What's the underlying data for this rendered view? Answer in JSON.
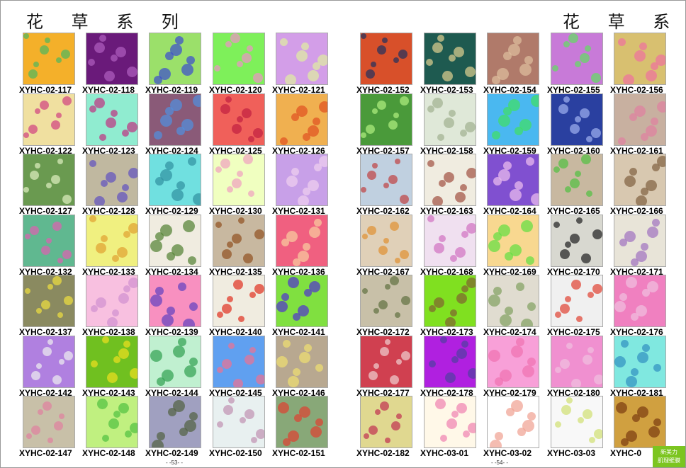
{
  "left": {
    "title": "花 草 系 列",
    "page_number": "- -53- -",
    "swatches": [
      {
        "code": "XYHC-02-117",
        "bg": "#f4b02a",
        "fg": "#4cb860"
      },
      {
        "code": "XYHC-02-118",
        "bg": "#6a1a7a",
        "fg": "#b060c0"
      },
      {
        "code": "XYHC-02-119",
        "bg": "#9be06a",
        "fg": "#3a4ad0"
      },
      {
        "code": "XYHC-02-120",
        "bg": "#7ef05a",
        "fg": "#f090c8"
      },
      {
        "code": "XYHC-02-121",
        "bg": "#d39ee8",
        "fg": "#e0f0a0"
      },
      {
        "code": "XYHC-02-122",
        "bg": "#f0e0a0",
        "fg": "#d04080"
      },
      {
        "code": "XYHC-02-123",
        "bg": "#90ecd0",
        "fg": "#c03080"
      },
      {
        "code": "XYHC-02-124",
        "bg": "#8a5a78",
        "fg": "#5090e0"
      },
      {
        "code": "XYHC-02-125",
        "bg": "#f0605a",
        "fg": "#c02040"
      },
      {
        "code": "XYHC-02-126",
        "bg": "#f0b050",
        "fg": "#e05020"
      },
      {
        "code": "XYHC-02-127",
        "bg": "#6a9a50",
        "fg": "#e0f0c0"
      },
      {
        "code": "XYHC-02-128",
        "bg": "#c0b8a0",
        "fg": "#6050c0"
      },
      {
        "code": "XYHC-02-129",
        "bg": "#70e0e0",
        "fg": "#3090a0"
      },
      {
        "code": "XYHC-02-130",
        "bg": "#f0ffc0",
        "fg": "#f0a0c0"
      },
      {
        "code": "XYHC-02-131",
        "bg": "#c8a0e8",
        "fg": "#f0d0f0"
      },
      {
        "code": "XYHC-02-132",
        "bg": "#60b890",
        "fg": "#e060b0"
      },
      {
        "code": "XYHC-02-133",
        "bg": "#f0f080",
        "fg": "#e0a030"
      },
      {
        "code": "XYHC-02-134",
        "bg": "#f0ece0",
        "fg": "#508030"
      },
      {
        "code": "XYHC-02-135",
        "bg": "#c8b8a0",
        "fg": "#905020"
      },
      {
        "code": "XYHC-02-136",
        "bg": "#f06080",
        "fg": "#f8d0a0"
      },
      {
        "code": "XYHC-02-137",
        "bg": "#8a8a60",
        "fg": "#f0e040"
      },
      {
        "code": "XYHC-02-138",
        "bg": "#f8c0e0",
        "fg": "#d090d0"
      },
      {
        "code": "XYHC-02-139",
        "bg": "#f890c0",
        "fg": "#6040c0"
      },
      {
        "code": "XYHC-02-140",
        "bg": "#f0ece0",
        "fg": "#e03020"
      },
      {
        "code": "XYHC-02-141",
        "bg": "#80e040",
        "fg": "#5030d0"
      },
      {
        "code": "XYHC-02-142",
        "bg": "#b080e0",
        "fg": "#f0f0f0"
      },
      {
        "code": "XYHC-02-143",
        "bg": "#70c020",
        "fg": "#f0e020"
      },
      {
        "code": "XYHC-02-144",
        "bg": "#c0f0d0",
        "fg": "#30a050"
      },
      {
        "code": "XYHC-02-145",
        "bg": "#60a0f0",
        "fg": "#f07090"
      },
      {
        "code": "XYHC-02-146",
        "bg": "#b8a890",
        "fg": "#f0e070"
      },
      {
        "code": "XYHC-02-147",
        "bg": "#c8c0a8",
        "fg": "#e080a0"
      },
      {
        "code": "XYHC-02-148",
        "bg": "#c0f080",
        "fg": "#50c040"
      },
      {
        "code": "XYHC-02-149",
        "bg": "#a0a0c0",
        "fg": "#506040"
      },
      {
        "code": "XYHC-02-150",
        "bg": "#e8f0f0",
        "fg": "#c090b0"
      },
      {
        "code": "XYHC-02-151",
        "bg": "#88a878",
        "fg": "#e04030"
      }
    ]
  },
  "right": {
    "title": "花 草 系 列",
    "page_number": "- -54- -",
    "swatches": [
      {
        "code": "XYHC-02-152",
        "bg": "#d8502a",
        "fg": "#203060"
      },
      {
        "code": "XYHC-02-153",
        "bg": "#1e5a50",
        "fg": "#e0d090"
      },
      {
        "code": "XYHC-02-154",
        "bg": "#b07a6a",
        "fg": "#e0c0a0"
      },
      {
        "code": "XYHC-02-155",
        "bg": "#c87ad8",
        "fg": "#60e060"
      },
      {
        "code": "XYHC-02-156",
        "bg": "#d8c070",
        "fg": "#f070a0"
      },
      {
        "code": "XYHC-02-157",
        "bg": "#4a9a3a",
        "fg": "#b0f080"
      },
      {
        "code": "XYHC-02-158",
        "bg": "#dfe8d8",
        "fg": "#a0b090"
      },
      {
        "code": "XYHC-02-159",
        "bg": "#4ab8f0",
        "fg": "#40e060"
      },
      {
        "code": "XYHC-02-160",
        "bg": "#2a40a0",
        "fg": "#a0b0f0"
      },
      {
        "code": "XYHC-02-161",
        "bg": "#c8b0a0",
        "fg": "#e080a0"
      },
      {
        "code": "XYHC-02-162",
        "bg": "#c0d0e0",
        "fg": "#c04040"
      },
      {
        "code": "XYHC-02-163",
        "bg": "#f0ece0",
        "fg": "#a05040"
      },
      {
        "code": "XYHC-02-164",
        "bg": "#8050d0",
        "fg": "#f0c0f0"
      },
      {
        "code": "XYHC-02-165",
        "bg": "#c8b8a0",
        "fg": "#50c040"
      },
      {
        "code": "XYHC-02-166",
        "bg": "#d8c8b0",
        "fg": "#806040"
      },
      {
        "code": "XYHC-02-167",
        "bg": "#e0d0b8",
        "fg": "#e09030"
      },
      {
        "code": "XYHC-02-168",
        "bg": "#f0e0f0",
        "fg": "#d070c0"
      },
      {
        "code": "XYHC-02-169",
        "bg": "#f8d890",
        "fg": "#60e040"
      },
      {
        "code": "XYHC-02-170",
        "bg": "#d8d8d0",
        "fg": "#202020"
      },
      {
        "code": "XYHC-02-171",
        "bg": "#e8e4d8",
        "fg": "#a070c0"
      },
      {
        "code": "XYHC-02-172",
        "bg": "#c8c0a8",
        "fg": "#607040"
      },
      {
        "code": "XYHC-02-173",
        "bg": "#80e020",
        "fg": "#806030"
      },
      {
        "code": "XYHC-02-174",
        "bg": "#e0dcd0",
        "fg": "#80a060"
      },
      {
        "code": "XYHC-02-175",
        "bg": "#f0f0f0",
        "fg": "#e04030"
      },
      {
        "code": "XYHC-02-176",
        "bg": "#f080c0",
        "fg": "#f0c0e0"
      },
      {
        "code": "XYHC-02-177",
        "bg": "#d04050",
        "fg": "#f0d0d0"
      },
      {
        "code": "XYHC-02-178",
        "bg": "#b020e0",
        "fg": "#5040a0"
      },
      {
        "code": "XYHC-02-179",
        "bg": "#f8a0d8",
        "fg": "#f070b0"
      },
      {
        "code": "XYHC-02-180",
        "bg": "#f090d0",
        "fg": "#f0c0e0"
      },
      {
        "code": "XYHC-02-181",
        "bg": "#80e8e0",
        "fg": "#3090c0"
      },
      {
        "code": "XYHC-02-182",
        "bg": "#e0d890",
        "fg": "#c03050"
      },
      {
        "code": "XYHC-03-01",
        "bg": "#fff8e8",
        "fg": "#f080b0"
      },
      {
        "code": "XYHC-03-02",
        "bg": "#ffffff",
        "fg": "#f0a090"
      },
      {
        "code": "XYHC-03-03",
        "bg": "#f8f8f8",
        "fg": "#d0e070"
      },
      {
        "code": "XYHC-0",
        "bg": "#d0a040",
        "fg": "#7a3a10"
      }
    ]
  },
  "logo": {
    "line1": "新美力",
    "line2": "肌理壁膜",
    "color": "#7cc520"
  }
}
